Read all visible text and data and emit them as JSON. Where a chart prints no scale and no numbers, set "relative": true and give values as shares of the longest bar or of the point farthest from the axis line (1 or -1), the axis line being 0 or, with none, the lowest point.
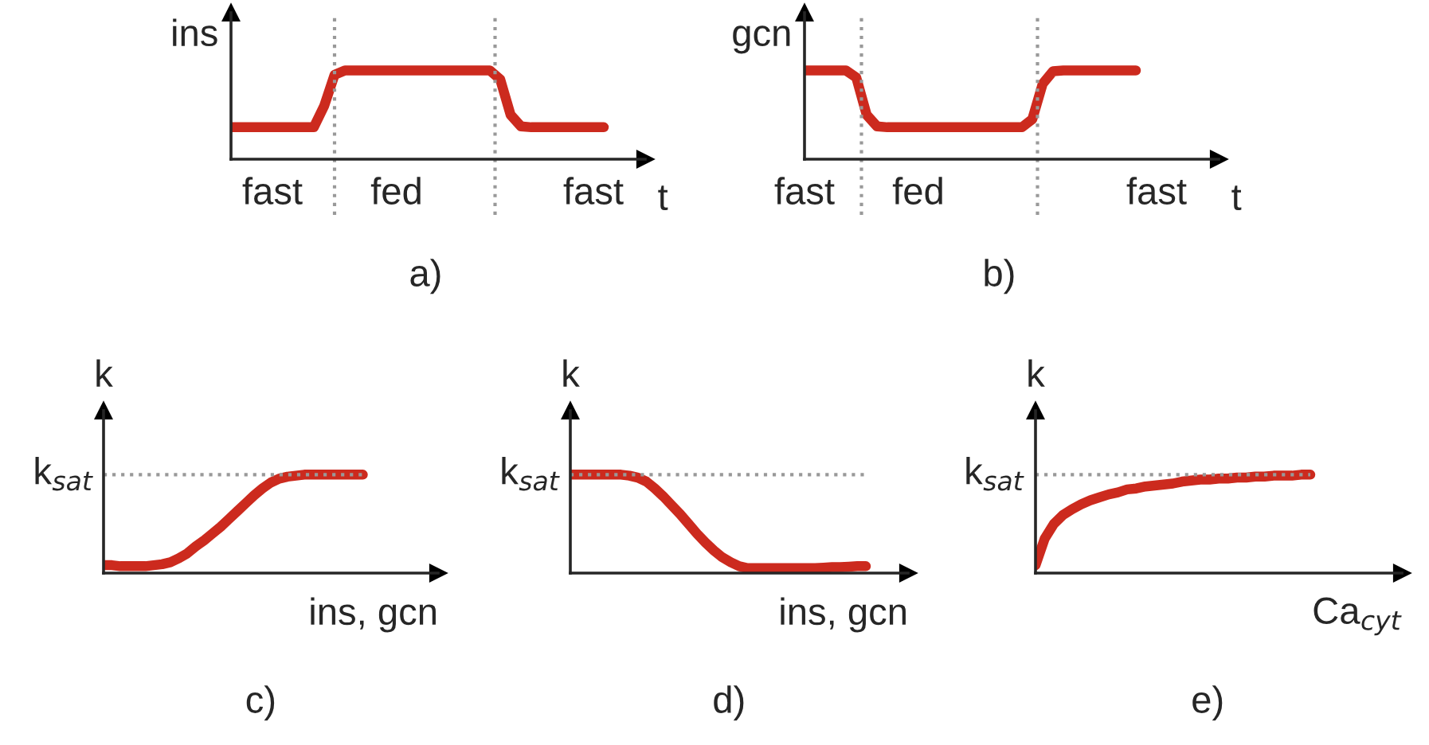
{
  "chart_data": [
    {
      "type": "line",
      "relative": true,
      "ylabel": "ins",
      "xlabel": "t",
      "tick_labels": "x",
      "line_style": "solid",
      "categories": [
        null,
        null,
        null,
        null,
        "fast",
        null,
        null,
        null,
        null,
        null,
        null,
        null,
        null,
        null,
        null,
        null,
        "fed",
        null,
        null,
        null,
        null,
        null,
        null,
        null,
        null,
        null,
        null,
        null,
        null,
        null,
        null,
        null,
        null,
        null,
        null,
        "fast",
        null,
        null,
        null,
        null,
        null
      ],
      "series": [
        {
          "color": "#cc2a1e",
          "values": [
            0.36,
            0.36,
            0.36,
            0.36,
            0.36,
            0.36,
            0.36,
            0.36,
            0.36,
            0.6,
            0.95,
            1,
            1,
            1,
            1,
            1,
            1,
            1,
            1,
            1,
            1,
            1,
            1,
            1,
            1,
            1,
            0.9,
            0.5,
            0.37,
            0.36,
            0.36,
            0.36,
            0.36,
            0.36,
            0.36,
            0.36,
            0.36,
            null,
            null,
            null,
            null
          ]
        }
      ],
      "annotations": [
        "a)"
      ]
    },
    {
      "type": "line",
      "relative": true,
      "ylabel": "gcn",
      "xlabel": "t",
      "tick_labels": "x",
      "line_style": "solid",
      "categories": [
        "fast",
        null,
        null,
        null,
        null,
        null,
        null,
        null,
        null,
        null,
        null,
        "fed",
        null,
        null,
        null,
        null,
        null,
        null,
        null,
        null,
        null,
        null,
        null,
        null,
        null,
        null,
        null,
        null,
        null,
        null,
        null,
        null,
        null,
        null,
        "fast",
        null,
        null,
        null,
        null,
        null,
        null
      ],
      "series": [
        {
          "color": "#cc2a1e",
          "values": [
            1,
            1,
            1,
            1,
            1,
            0.92,
            0.5,
            0.37,
            0.36,
            0.36,
            0.36,
            0.36,
            0.36,
            0.36,
            0.36,
            0.36,
            0.36,
            0.36,
            0.36,
            0.36,
            0.36,
            0.36,
            0.45,
            0.85,
            0.99,
            1,
            1,
            1,
            1,
            1,
            1,
            1,
            1,
            null,
            null,
            null,
            null,
            null,
            null,
            null,
            null
          ]
        }
      ],
      "annotations": [
        "b)"
      ]
    },
    {
      "type": "line",
      "relative": true,
      "ylabel": "k",
      "xlabel": "ins, gcn",
      "tick_labels": false,
      "line_style": "solid",
      "categories": [
        null,
        null,
        null,
        null,
        null,
        null,
        null,
        null,
        null,
        null,
        null,
        null,
        null,
        null,
        null,
        null,
        null,
        null,
        null,
        null,
        null,
        null,
        null,
        null,
        null,
        null,
        null,
        null,
        null,
        null,
        null,
        null,
        null,
        null,
        null,
        null,
        null,
        null,
        null,
        null,
        null
      ],
      "series": [
        {
          "color": "#cc2a1e",
          "values": [
            0.08,
            0.08,
            0.07,
            0.07,
            0.07,
            0.07,
            0.08,
            0.09,
            0.11,
            0.15,
            0.2,
            0.27,
            0.33,
            0.4,
            0.47,
            0.55,
            0.63,
            0.71,
            0.79,
            0.86,
            0.92,
            0.96,
            0.98,
            0.99,
            1,
            1,
            1,
            1,
            1,
            1,
            1,
            1,
            null,
            null,
            null,
            null,
            null,
            null,
            null,
            null,
            null
          ]
        }
      ],
      "ref_lines": [
        {
          "axis": "y",
          "value": 1,
          "label": "k$_{sat}$",
          "color": "#999999",
          "line_style": "dotted"
        }
      ],
      "annotations": [
        "c)"
      ]
    },
    {
      "type": "line",
      "relative": true,
      "ylabel": "k",
      "xlabel": "ins, gcn",
      "tick_labels": false,
      "line_style": "solid",
      "categories": [
        null,
        null,
        null,
        null,
        null,
        null,
        null,
        null,
        null,
        null,
        null,
        null,
        null,
        null,
        null,
        null,
        null,
        null,
        null,
        null,
        null,
        null,
        null,
        null,
        null,
        null,
        null,
        null,
        null,
        null,
        null,
        null,
        null,
        null,
        null,
        null,
        null,
        null,
        null,
        null,
        null
      ],
      "series": [
        {
          "color": "#cc2a1e",
          "values": [
            1,
            1,
            1,
            1,
            1,
            1,
            1,
            0.99,
            0.97,
            0.93,
            0.86,
            0.78,
            0.69,
            0.6,
            0.5,
            0.4,
            0.31,
            0.23,
            0.16,
            0.11,
            0.07,
            0.05,
            0.05,
            0.05,
            0.05,
            0.05,
            0.05,
            0.05,
            0.05,
            0.05,
            0.055,
            0.06,
            0.06,
            0.065,
            0.07,
            0.07,
            null,
            null,
            null,
            null,
            null
          ]
        }
      ],
      "ref_lines": [
        {
          "axis": "y",
          "value": 1,
          "label": "k$_{sat}$",
          "color": "#999999",
          "line_style": "dotted"
        }
      ],
      "annotations": [
        "d)"
      ]
    },
    {
      "type": "line",
      "relative": true,
      "ylabel": "k",
      "xlabel": "Ca$_{cyt}$",
      "tick_labels": false,
      "line_style": "solid",
      "categories": [
        null,
        null,
        null,
        null,
        null,
        null,
        null,
        null,
        null,
        null,
        null,
        null,
        null,
        null,
        null,
        null,
        null,
        null,
        null,
        null,
        null,
        null,
        null,
        null,
        null,
        null,
        null,
        null,
        null,
        null,
        null,
        null,
        null,
        null,
        null,
        null,
        null,
        null,
        null,
        null,
        null
      ],
      "series": [
        {
          "color": "#cc2a1e",
          "values": [
            0.08,
            0.35,
            0.5,
            0.59,
            0.65,
            0.7,
            0.74,
            0.77,
            0.8,
            0.82,
            0.85,
            0.86,
            0.88,
            0.89,
            0.9,
            0.91,
            0.93,
            0.94,
            0.95,
            0.95,
            0.96,
            0.96,
            0.97,
            0.97,
            0.98,
            0.98,
            0.99,
            0.99,
            0.99,
            1,
            1,
            null,
            null,
            null,
            null,
            null,
            null,
            null,
            null,
            null,
            null
          ]
        }
      ],
      "ref_lines": [
        {
          "axis": "y",
          "value": 1,
          "label": "k$_{sat}$",
          "color": "#999999",
          "line_style": "dotted"
        }
      ],
      "annotations": [
        "e)"
      ]
    }
  ]
}
